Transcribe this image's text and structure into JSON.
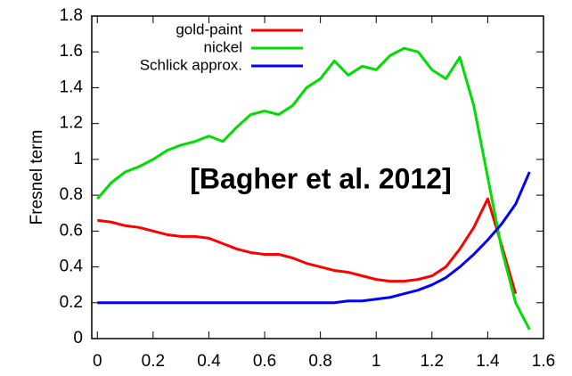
{
  "chart_data": {
    "type": "line",
    "y_label": "Fresnel term",
    "annotation": "[Bagher et al. 2012]",
    "x": [
      0,
      0.05,
      0.1,
      0.15,
      0.2,
      0.25,
      0.3,
      0.35,
      0.4,
      0.45,
      0.5,
      0.55,
      0.6,
      0.65,
      0.7,
      0.75,
      0.8,
      0.85,
      0.9,
      0.95,
      1.0,
      1.05,
      1.1,
      1.15,
      1.2,
      1.25,
      1.3,
      1.35,
      1.4,
      1.45,
      1.5,
      1.55
    ],
    "series": [
      {
        "name": "gold-paint",
        "color": "#ff0000",
        "values": [
          0.66,
          0.65,
          0.63,
          0.62,
          0.6,
          0.58,
          0.57,
          0.57,
          0.56,
          0.53,
          0.5,
          0.48,
          0.47,
          0.47,
          0.45,
          0.42,
          0.4,
          0.38,
          0.37,
          0.35,
          0.33,
          0.32,
          0.32,
          0.33,
          0.35,
          0.4,
          0.5,
          0.62,
          0.78,
          0.52,
          0.25,
          null
        ]
      },
      {
        "name": "nickel",
        "color": "#00dd00",
        "values": [
          0.78,
          0.87,
          0.93,
          0.96,
          1.0,
          1.05,
          1.08,
          1.1,
          1.13,
          1.1,
          1.18,
          1.25,
          1.27,
          1.25,
          1.3,
          1.4,
          1.45,
          1.55,
          1.47,
          1.52,
          1.5,
          1.58,
          1.62,
          1.6,
          1.5,
          1.45,
          1.57,
          1.3,
          0.9,
          0.5,
          0.2,
          0.05
        ]
      },
      {
        "name": "Schlick approx.",
        "color": "#0000ff",
        "values": [
          0.2,
          0.2,
          0.2,
          0.2,
          0.2,
          0.2,
          0.2,
          0.2,
          0.2,
          0.2,
          0.2,
          0.2,
          0.2,
          0.2,
          0.2,
          0.2,
          0.2,
          0.2,
          0.21,
          0.21,
          0.22,
          0.23,
          0.25,
          0.27,
          0.3,
          0.34,
          0.4,
          0.47,
          0.55,
          0.64,
          0.75,
          0.93
        ]
      }
    ],
    "xlim": [
      -0.02,
      1.6
    ],
    "ylim": [
      0,
      1.8
    ],
    "xticks": [
      0,
      0.2,
      0.4,
      0.6,
      0.8,
      1,
      1.2,
      1.4,
      1.6
    ],
    "yticks": [
      0,
      0.2,
      0.4,
      0.6,
      0.8,
      1,
      1.2,
      1.4,
      1.6,
      1.8
    ],
    "legend": "top-left"
  }
}
